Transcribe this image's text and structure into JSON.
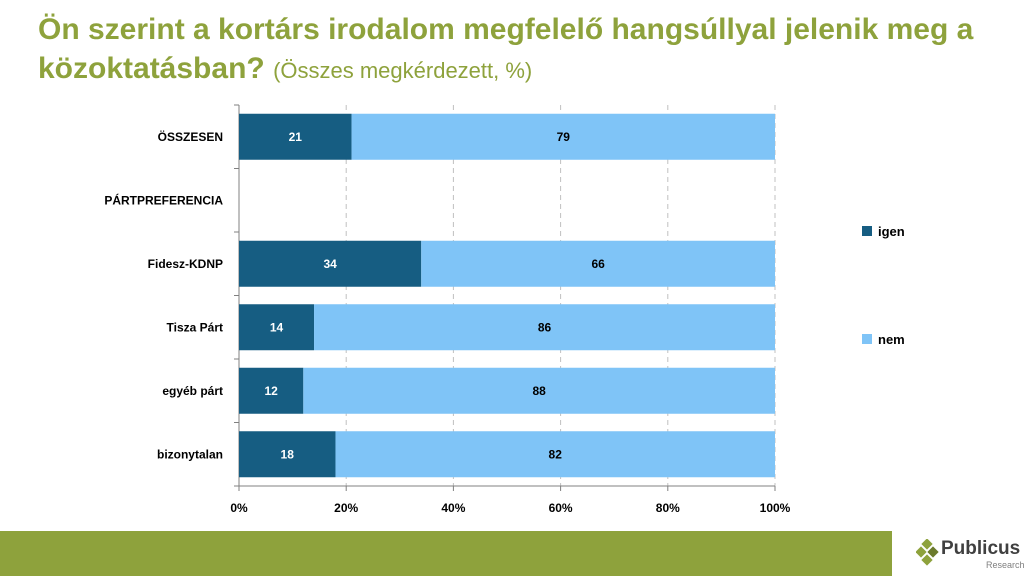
{
  "title": {
    "main": "Ön szerint a kortárs irodalom megfelelő hangsúllyal jelenik meg a közoktatásban?",
    "sub": "(Összes megkérdezett, %)"
  },
  "chart_data": {
    "type": "bar",
    "orientation": "horizontal",
    "stacked": true,
    "categories": [
      "ÖSSZESEN",
      "PÁRTPREFERENCIA",
      "Fidesz-KDNP",
      "Tisza Párt",
      "egyéb párt",
      "bizonytalan"
    ],
    "series": [
      {
        "name": "igen",
        "color": "#165d82",
        "label_color": "#ffffff",
        "values": [
          21,
          null,
          34,
          14,
          12,
          18
        ]
      },
      {
        "name": "nem",
        "color": "#7fc4f7",
        "label_color": "#000000",
        "values": [
          79,
          null,
          66,
          86,
          88,
          82
        ]
      }
    ],
    "xlim": [
      0,
      100
    ],
    "xticks": [
      "0%",
      "20%",
      "40%",
      "60%",
      "80%",
      "100%"
    ],
    "grid": true,
    "legend_position": "right"
  },
  "logo": {
    "name": "Publicus",
    "sub": "Research"
  },
  "colors": {
    "accent": "#8ea23c",
    "grid": "#c0c0c0"
  }
}
